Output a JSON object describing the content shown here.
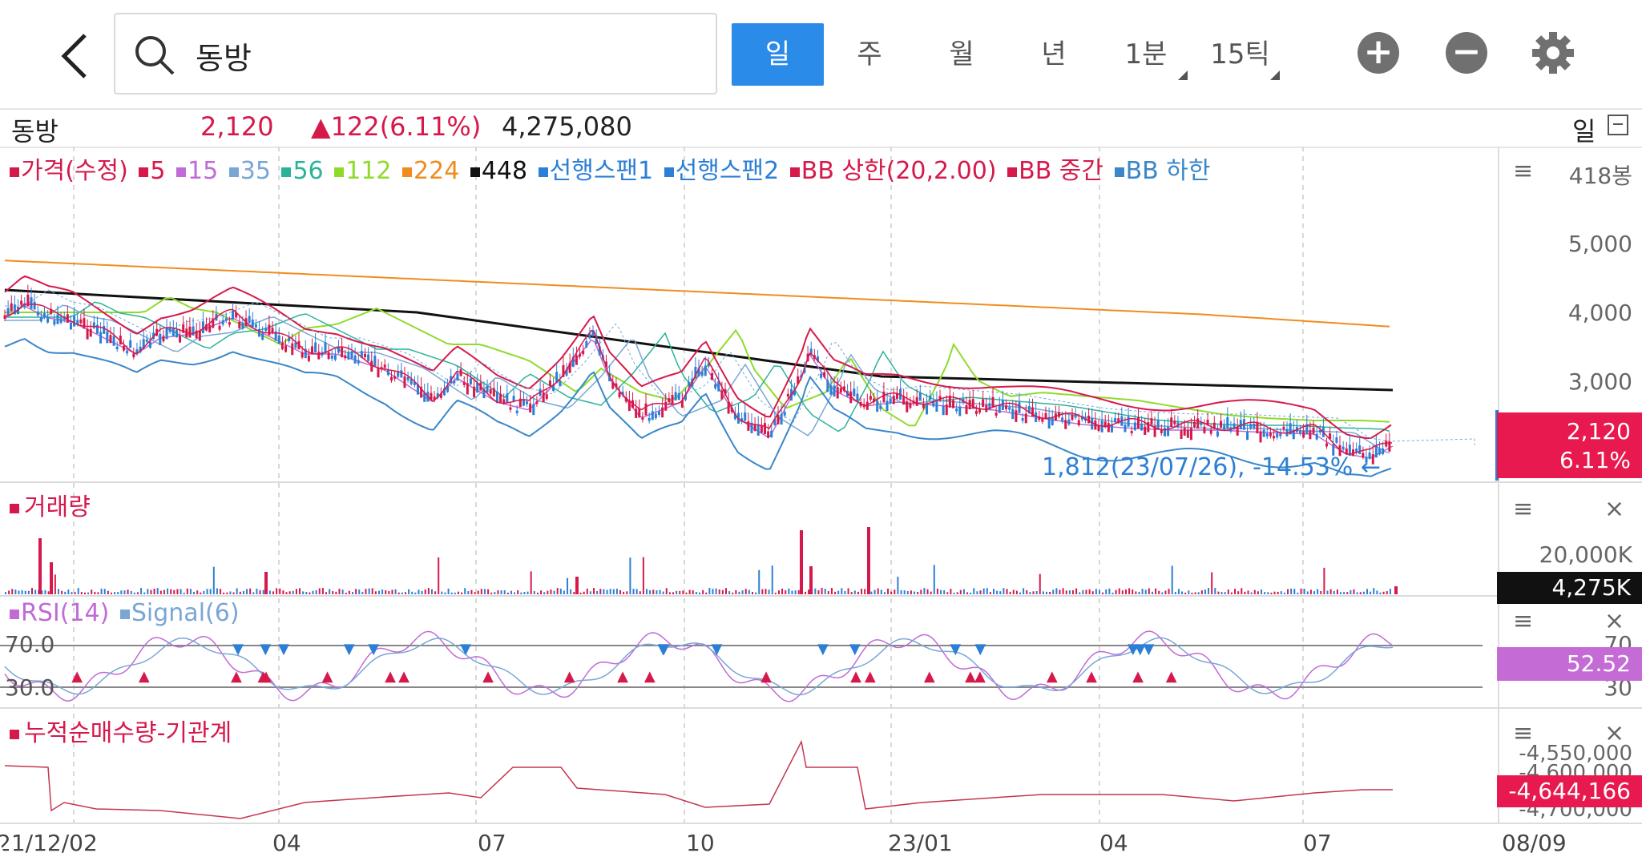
{
  "header": {
    "search_value": "동방",
    "periods": [
      "일",
      "주",
      "월",
      "년",
      "1분",
      "15틱"
    ],
    "active_period": "일"
  },
  "quote": {
    "name": "동방",
    "price": "2,120",
    "change": "▲122(6.11%)",
    "volume": "4,275,080",
    "period_label": "일"
  },
  "price_panel": {
    "legend": [
      {
        "label": "가격(수정)",
        "color": "#d6194b"
      },
      {
        "label": "5",
        "color": "#d6194b"
      },
      {
        "label": "15",
        "color": "#c06bd6"
      },
      {
        "label": "35",
        "color": "#7aa6d6"
      },
      {
        "label": "56",
        "color": "#2bb39a"
      },
      {
        "label": "112",
        "color": "#8fdb2b"
      },
      {
        "label": "224",
        "color": "#f08c1e"
      },
      {
        "label": "448",
        "color": "#111111"
      },
      {
        "label": "선행스팬1",
        "color": "#2b7fd6"
      },
      {
        "label": "선행스팬2",
        "color": "#2b7fd6"
      },
      {
        "label": "BB 상한(20,2.00)",
        "color": "#d6194b"
      },
      {
        "label": "BB 중간",
        "color": "#d6194b"
      },
      {
        "label": "BB 하한",
        "color": "#3a86c8"
      }
    ],
    "unit_label": "418봉",
    "y_ticks": [
      "5,000",
      "4,000",
      "3,000"
    ],
    "price_tag": "2,120",
    "pct_tag": "6.11%",
    "low_annotation": "1,812(23/07/26), -14.53%"
  },
  "volume_panel": {
    "title": "거래량",
    "y_tick": "20,000K",
    "tag": "4,275K"
  },
  "rsi_panel": {
    "legend": [
      {
        "label": "RSI(14)",
        "color": "#c06bd6"
      },
      {
        "label": "Signal(6)",
        "color": "#7aa6d6"
      }
    ],
    "upper": "70.0",
    "lower": "30.0",
    "axis_upper": "70",
    "axis_lower": "30",
    "tag": "52.52"
  },
  "flow_panel": {
    "title": "누적순매수량-기관계",
    "y_ticks": [
      "-4,550,000",
      "-4,600,000",
      "-4,700,000"
    ],
    "tag": "-4,644,166"
  },
  "x_axis": [
    "21/12/02",
    "04",
    "07",
    "10",
    "23/01",
    "04",
    "07",
    "08/09"
  ],
  "colors": {
    "accent": "#2b8be8",
    "up": "#d6194b",
    "down": "#2b7fd6",
    "rsi_tag": "#c46bd6",
    "volume_tag": "#111111"
  }
}
